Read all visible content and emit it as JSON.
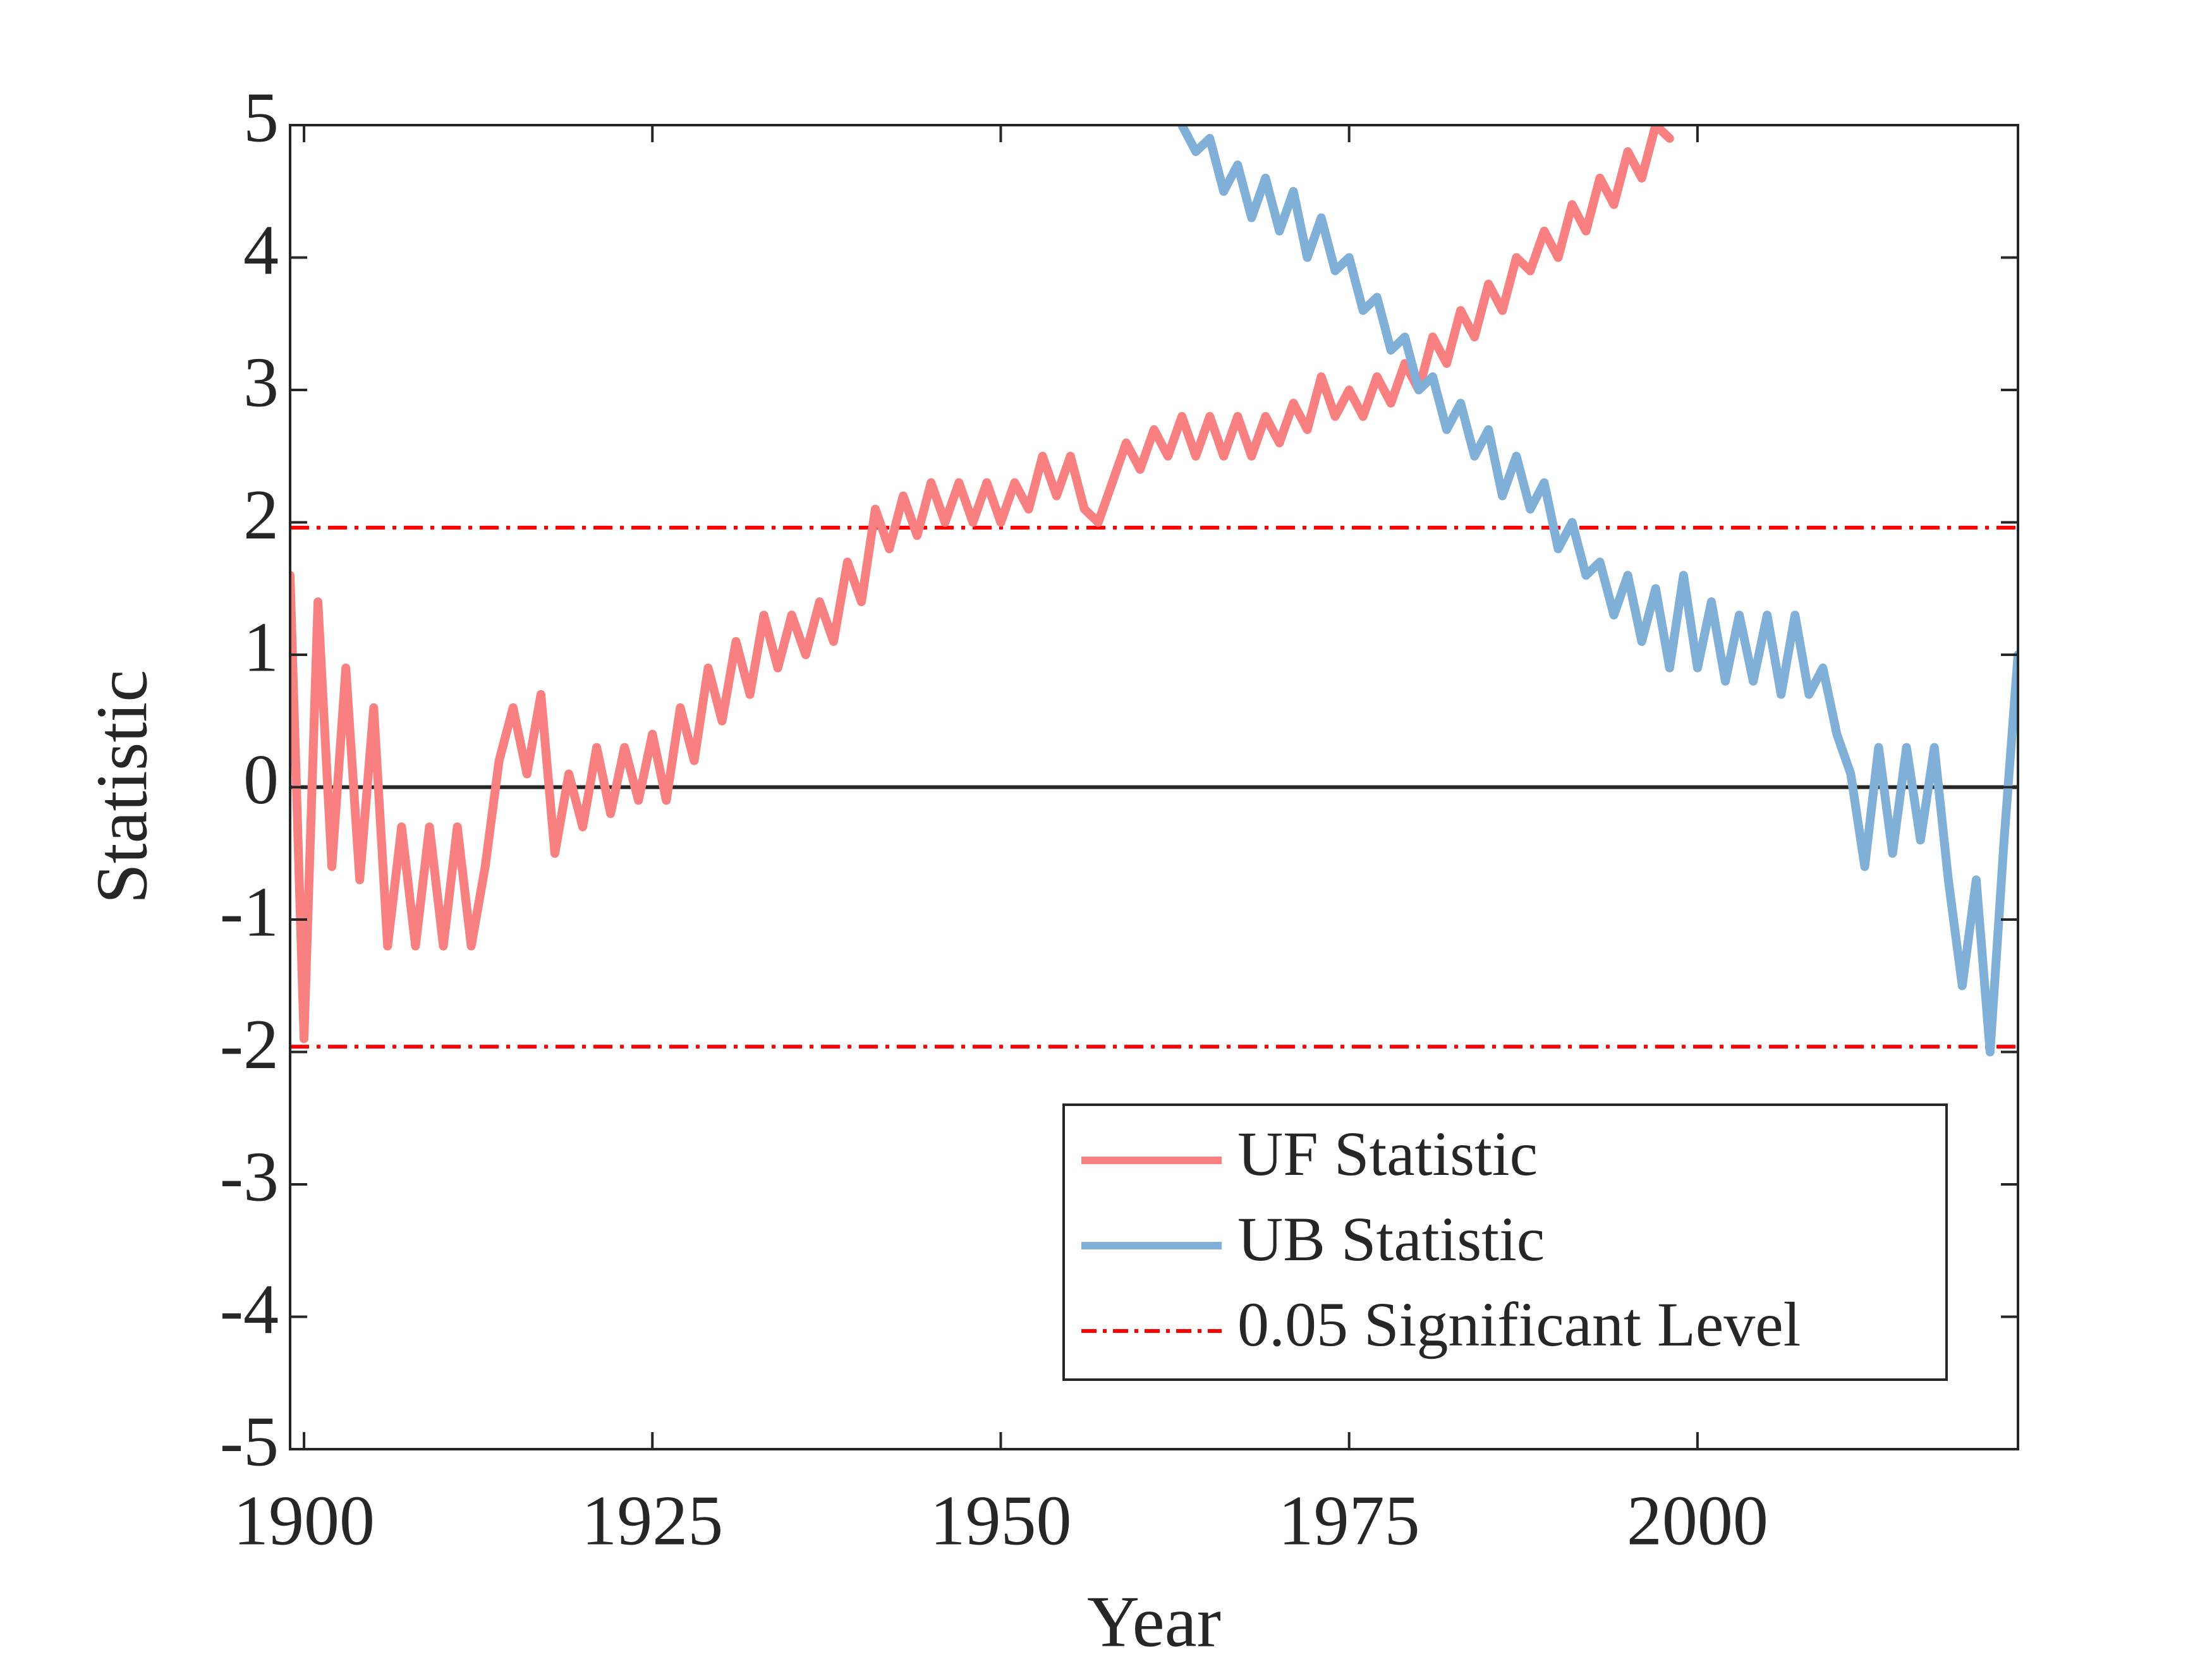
{
  "chart_data": {
    "type": "line",
    "xlabel": "Year",
    "ylabel": "Statistic",
    "xlim": [
      1899,
      2023
    ],
    "ylim": [
      -5,
      5
    ],
    "xticks": [
      1900,
      1925,
      1950,
      1975,
      2000
    ],
    "yticks": [
      -5,
      -4,
      -3,
      -2,
      -1,
      0,
      1,
      2,
      3,
      4,
      5
    ],
    "zero_line": true,
    "legend": "lower right",
    "x": [
      1899,
      1900,
      1901,
      1902,
      1903,
      1904,
      1905,
      1906,
      1907,
      1908,
      1909,
      1910,
      1911,
      1912,
      1913,
      1914,
      1915,
      1916,
      1917,
      1918,
      1919,
      1920,
      1921,
      1922,
      1923,
      1924,
      1925,
      1926,
      1927,
      1928,
      1929,
      1930,
      1931,
      1932,
      1933,
      1934,
      1935,
      1936,
      1937,
      1938,
      1939,
      1940,
      1941,
      1942,
      1943,
      1944,
      1945,
      1946,
      1947,
      1948,
      1949,
      1950,
      1951,
      1952,
      1953,
      1954,
      1955,
      1956,
      1957,
      1958,
      1959,
      1960,
      1961,
      1962,
      1963,
      1964,
      1965,
      1966,
      1967,
      1968,
      1969,
      1970,
      1971,
      1972,
      1973,
      1974,
      1975,
      1976,
      1977,
      1978,
      1979,
      1980,
      1981,
      1982,
      1983,
      1984,
      1985,
      1986,
      1987,
      1988,
      1989,
      1990,
      1991,
      1992,
      1993,
      1994,
      1995,
      1996,
      1997,
      1998,
      1999,
      2000,
      2001,
      2002,
      2003,
      2004,
      2005,
      2006,
      2007,
      2008,
      2009,
      2010,
      2011,
      2012,
      2013,
      2014,
      2015,
      2016,
      2017,
      2018,
      2019,
      2020,
      2021,
      2022,
      2023
    ],
    "series": [
      {
        "name": "UF Statistic",
        "color": "#f88080",
        "values": [
          1.6,
          -1.9,
          1.4,
          -0.6,
          0.9,
          -0.7,
          0.6,
          -1.2,
          -0.3,
          -1.2,
          -0.3,
          -1.2,
          -0.3,
          -1.2,
          -0.6,
          0.2,
          0.6,
          0.1,
          0.7,
          -0.5,
          0.1,
          -0.3,
          0.3,
          -0.2,
          0.3,
          -0.1,
          0.4,
          -0.1,
          0.6,
          0.2,
          0.9,
          0.5,
          1.1,
          0.7,
          1.3,
          0.9,
          1.3,
          1.0,
          1.4,
          1.1,
          1.7,
          1.4,
          2.1,
          1.8,
          2.2,
          1.9,
          2.3,
          2.0,
          2.3,
          2.0,
          2.3,
          2.0,
          2.3,
          2.1,
          2.5,
          2.2,
          2.5,
          2.1,
          2.0,
          2.3,
          2.6,
          2.4,
          2.7,
          2.5,
          2.8,
          2.5,
          2.8,
          2.5,
          2.8,
          2.5,
          2.8,
          2.6,
          2.9,
          2.7,
          3.1,
          2.8,
          3.0,
          2.8,
          3.1,
          2.9,
          3.2,
          3.0,
          3.4,
          3.2,
          3.6,
          3.4,
          3.8,
          3.6,
          4.0,
          3.9,
          4.2,
          4.0,
          4.4,
          4.2,
          4.6,
          4.4,
          4.8,
          4.6,
          5.0,
          4.9,
          null,
          null,
          null,
          null,
          null,
          null,
          null,
          null,
          null,
          null,
          null,
          null,
          null,
          null,
          null,
          null,
          null,
          null,
          null,
          null,
          null,
          null,
          null,
          null,
          null
        ]
      },
      {
        "name": "UB Statistic",
        "color": "#80b0d8",
        "values": [
          null,
          null,
          null,
          null,
          null,
          null,
          null,
          null,
          null,
          null,
          null,
          null,
          null,
          null,
          null,
          null,
          null,
          null,
          null,
          null,
          null,
          null,
          null,
          null,
          null,
          null,
          null,
          null,
          null,
          null,
          null,
          null,
          null,
          null,
          null,
          null,
          null,
          null,
          null,
          null,
          null,
          null,
          null,
          null,
          null,
          null,
          null,
          null,
          null,
          null,
          null,
          null,
          null,
          null,
          null,
          null,
          null,
          null,
          null,
          null,
          null,
          null,
          null,
          null,
          5.0,
          4.8,
          4.9,
          4.5,
          4.7,
          4.3,
          4.6,
          4.2,
          4.5,
          4.0,
          4.3,
          3.9,
          4.0,
          3.6,
          3.7,
          3.3,
          3.4,
          3.0,
          3.1,
          2.7,
          2.9,
          2.5,
          2.7,
          2.2,
          2.5,
          2.1,
          2.3,
          1.8,
          2.0,
          1.6,
          1.7,
          1.3,
          1.6,
          1.1,
          1.5,
          0.9,
          1.6,
          0.9,
          1.4,
          0.8,
          1.3,
          0.8,
          1.3,
          0.7,
          1.3,
          0.7,
          0.9,
          0.4,
          0.1,
          -0.6,
          0.3,
          -0.5,
          0.3,
          -0.4,
          0.3,
          -0.7,
          -1.5,
          -0.7,
          -2.0,
          -0.4,
          1.0
        ]
      }
    ],
    "hlines": {
      "name": "0.05 Significant Level",
      "color": "#ff0000",
      "values": [
        1.96,
        -1.96
      ]
    }
  }
}
